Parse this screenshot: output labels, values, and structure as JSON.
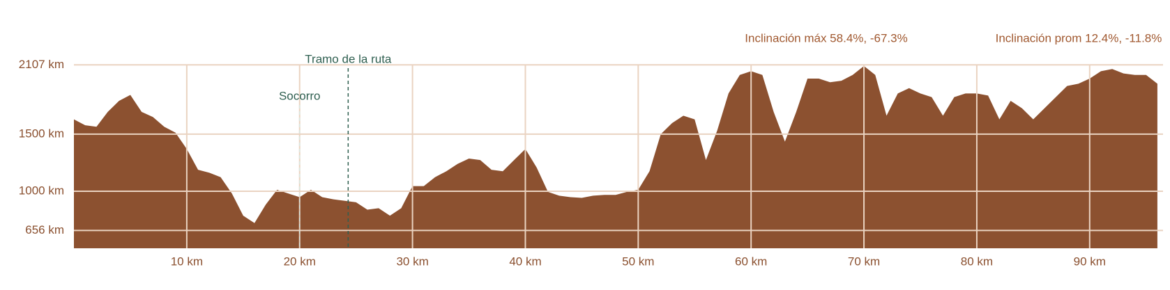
{
  "chart_data": {
    "type": "area",
    "annotations": [
      "Inclinación máx 58.4%, -67.3%",
      "Inclinación prom 12.4%, -11.8%"
    ],
    "markers": [
      {
        "label": "Socorro",
        "x": 20
      },
      {
        "label": "Tramo de la ruta",
        "x": 24.3
      }
    ],
    "x": [
      0,
      1,
      2,
      3,
      4,
      5,
      6,
      7,
      8,
      9,
      10,
      11,
      12,
      13,
      14,
      15,
      16,
      17,
      18,
      19,
      20,
      21,
      22,
      23,
      24,
      25,
      26,
      27,
      28,
      29,
      30,
      31,
      32,
      33,
      34,
      35,
      36,
      37,
      38,
      39,
      40,
      41,
      42,
      43,
      44,
      45,
      46,
      47,
      48,
      49,
      50,
      51,
      52,
      53,
      54,
      55,
      56,
      57,
      58,
      59,
      60,
      61,
      62,
      63,
      64,
      65,
      66,
      67,
      68,
      69,
      70,
      71,
      72,
      73,
      74,
      75,
      76,
      77,
      78,
      79,
      80,
      81,
      82,
      83,
      84,
      85,
      86,
      87,
      88,
      89,
      90,
      91,
      92,
      93,
      94,
      95,
      96
    ],
    "values": [
      1630,
      1578,
      1565,
      1695,
      1792,
      1844,
      1695,
      1650,
      1565,
      1513,
      1370,
      1188,
      1162,
      1123,
      980,
      786,
      721,
      883,
      1013,
      980,
      948,
      1013,
      948,
      929,
      916,
      903,
      838,
      851,
      786,
      851,
      1045,
      1045,
      1123,
      1175,
      1240,
      1286,
      1273,
      1188,
      1175,
      1273,
      1370,
      1208,
      994,
      961,
      948,
      942,
      961,
      968,
      968,
      994,
      1013,
      1175,
      1500,
      1597,
      1662,
      1630,
      1273,
      1532,
      1857,
      2019,
      2052,
      2019,
      1695,
      1435,
      1695,
      1987,
      1987,
      1955,
      1968,
      2019,
      2097,
      2019,
      1662,
      1857,
      1903,
      1857,
      1825,
      1662,
      1825,
      1857,
      1857,
      1838,
      1630,
      1792,
      1727,
      1630,
      1727,
      1825,
      1922,
      1942,
      1987,
      2052,
      2071,
      2032,
      2019,
      2019,
      1942
    ],
    "color": "#8c5130",
    "xlim": [
      0,
      96.5
    ],
    "ylim": [
      500,
      2450
    ],
    "xticks": [
      {
        "value": 10,
        "label": "10 km"
      },
      {
        "value": 20,
        "label": "20 km"
      },
      {
        "value": 30,
        "label": "30 km"
      },
      {
        "value": 40,
        "label": "40 km"
      },
      {
        "value": 50,
        "label": "50 km"
      },
      {
        "value": 60,
        "label": "60 km"
      },
      {
        "value": 70,
        "label": "70 km"
      },
      {
        "value": 80,
        "label": "80 km"
      },
      {
        "value": 90,
        "label": "90 km"
      }
    ],
    "yticks": [
      {
        "value": 656,
        "label": "656 km"
      },
      {
        "value": 1000,
        "label": "1000 km"
      },
      {
        "value": 1500,
        "label": "1500 km"
      },
      {
        "value": 2107,
        "label": "2107 km"
      }
    ],
    "grid": true
  }
}
